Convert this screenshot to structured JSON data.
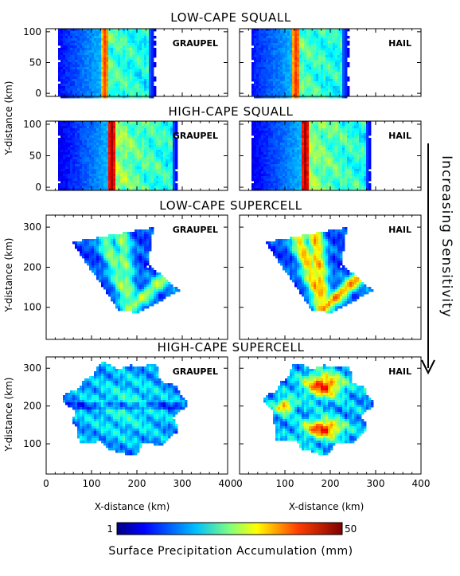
{
  "chart_data": {
    "type": "heatmap",
    "panels": [
      {
        "row": 0,
        "col": 0,
        "group_title": "LOW-CAPE SQUALL",
        "label": "GRAUPEL",
        "kind": "squall",
        "x_range_km": [
          25,
          240
        ],
        "peak_x_km": 130,
        "intensity": 0.55
      },
      {
        "row": 0,
        "col": 1,
        "group_title": "LOW-CAPE SQUALL",
        "label": "HAIL",
        "kind": "squall",
        "x_range_km": [
          25,
          240
        ],
        "peak_x_km": 125,
        "intensity": 0.6
      },
      {
        "row": 1,
        "col": 0,
        "group_title": "HIGH-CAPE SQUALL",
        "label": "GRAUPEL",
        "kind": "squall",
        "x_range_km": [
          25,
          290
        ],
        "peak_x_km": 145,
        "intensity": 1.0
      },
      {
        "row": 1,
        "col": 1,
        "group_title": "HIGH-CAPE SQUALL",
        "label": "HAIL",
        "kind": "squall",
        "x_range_km": [
          25,
          290
        ],
        "peak_x_km": 145,
        "intensity": 1.0
      },
      {
        "row": 2,
        "col": 0,
        "group_title": "LOW-CAPE SUPERCELL",
        "label": "GRAUPEL",
        "kind": "supercell-low",
        "intensity": 0.6
      },
      {
        "row": 2,
        "col": 1,
        "group_title": "LOW-CAPE SUPERCELL",
        "label": "HAIL",
        "kind": "supercell-low",
        "intensity": 0.95
      },
      {
        "row": 3,
        "col": 0,
        "group_title": "HIGH-CAPE SUPERCELL",
        "label": "GRAUPEL",
        "kind": "supercell-high",
        "intensity": 0.6
      },
      {
        "row": 3,
        "col": 1,
        "group_title": "HIGH-CAPE SUPERCELL",
        "label": "HAIL",
        "kind": "supercell-high",
        "intensity": 1.0
      }
    ],
    "row_titles": [
      "LOW-CAPE SQUALL",
      "HIGH-CAPE SQUALL",
      "LOW-CAPE SUPERCELL",
      "HIGH-CAPE SUPERCELL"
    ],
    "xlabel": "X-distance (km)",
    "ylabel": "Y-distance (km)",
    "xlim": [
      0,
      400
    ],
    "x_ticks": [
      "0",
      "100",
      "200",
      "300",
      "400"
    ],
    "squall_ylim": [
      -5,
      105
    ],
    "squall_y_ticks": [
      "0",
      "50",
      "100"
    ],
    "supercell_ylim": [
      20,
      330
    ],
    "supercell_y_ticks": [
      "100",
      "200",
      "300"
    ],
    "side_label": "Increasing Sensitivity",
    "colorbar": {
      "min_label": "1",
      "max_label": "50",
      "min": 1,
      "max": 50,
      "label": "Surface Precipitation Accumulation (mm)",
      "colormap": "jet"
    }
  },
  "colors": {
    "background": "#ffffff",
    "axis": "#000000"
  }
}
